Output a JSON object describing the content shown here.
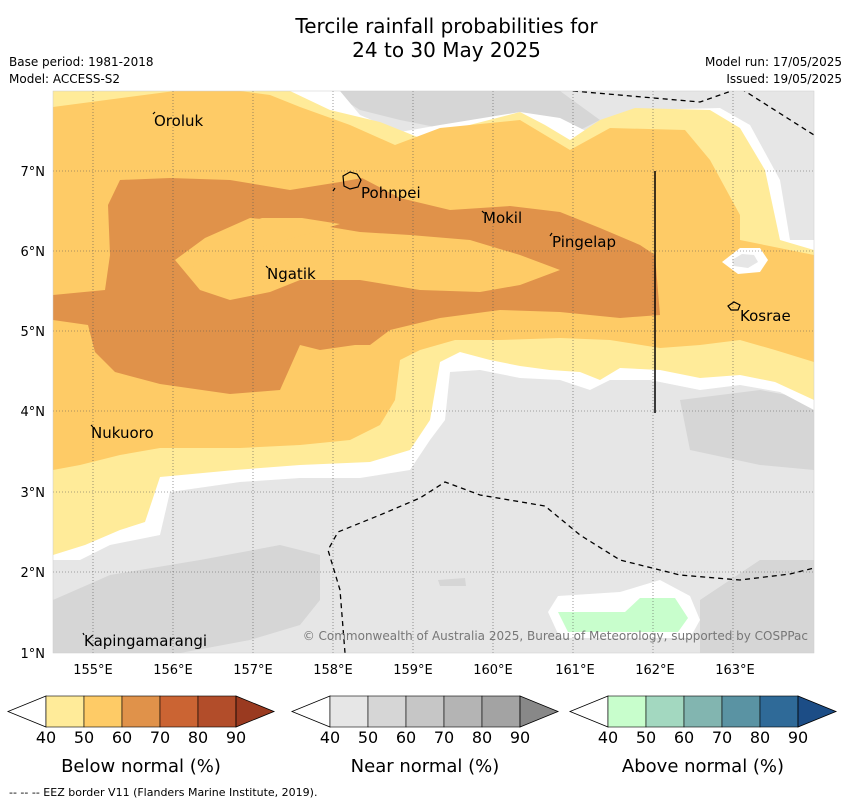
{
  "title_line1": "Tercile rainfall probabilities for",
  "title_line2": "24 to 30 May 2025",
  "meta": {
    "base_period": "Base period: 1981-2018",
    "model": "Model: ACCESS-S2",
    "model_run": "Model run: 17/05/2025",
    "issued": "Issued: 19/05/2025"
  },
  "map": {
    "lon_labels": [
      "155°E",
      "156°E",
      "157°E",
      "158°E",
      "159°E",
      "160°E",
      "161°E",
      "162°E",
      "163°E"
    ],
    "lat_labels": [
      "7°N",
      "6°N",
      "5°N",
      "4°N",
      "3°N",
      "2°N",
      "1°N"
    ],
    "places": [
      {
        "name": "Oroluk"
      },
      {
        "name": "Pohnpei"
      },
      {
        "name": "Mokil"
      },
      {
        "name": "Pingelap"
      },
      {
        "name": "Ngatik"
      },
      {
        "name": "Kosrae"
      },
      {
        "name": "Nukuoro"
      },
      {
        "name": "Kapingamarangi"
      }
    ],
    "copyright": "© Commonwealth of Australia 2025, Bureau of Meteorology, supported by COSPPac"
  },
  "colorbars": [
    {
      "label": "Below normal (%)",
      "ticks": [
        "40",
        "50",
        "60",
        "70",
        "80",
        "90"
      ],
      "colors": [
        "#ffffff",
        "#ffeb99",
        "#fecb66",
        "#e0924a",
        "#cb6433",
        "#b24d2a",
        "#9a3a20"
      ]
    },
    {
      "label": "Near normal (%)",
      "ticks": [
        "40",
        "50",
        "60",
        "70",
        "80",
        "90"
      ],
      "colors": [
        "#ffffff",
        "#e6e6e6",
        "#d6d6d6",
        "#c6c6c6",
        "#b4b4b4",
        "#a3a3a3",
        "#888888"
      ]
    },
    {
      "label": "Above normal (%)",
      "ticks": [
        "40",
        "50",
        "60",
        "70",
        "80",
        "90"
      ],
      "colors": [
        "#ffffff",
        "#c8fecc",
        "#a3d8c0",
        "#82b5b0",
        "#5a93a3",
        "#2f6a98",
        "#1c4d86"
      ]
    }
  ],
  "footer": "--  --  -- EEZ border V11 (Flanders Marine Institute, 2019)."
}
